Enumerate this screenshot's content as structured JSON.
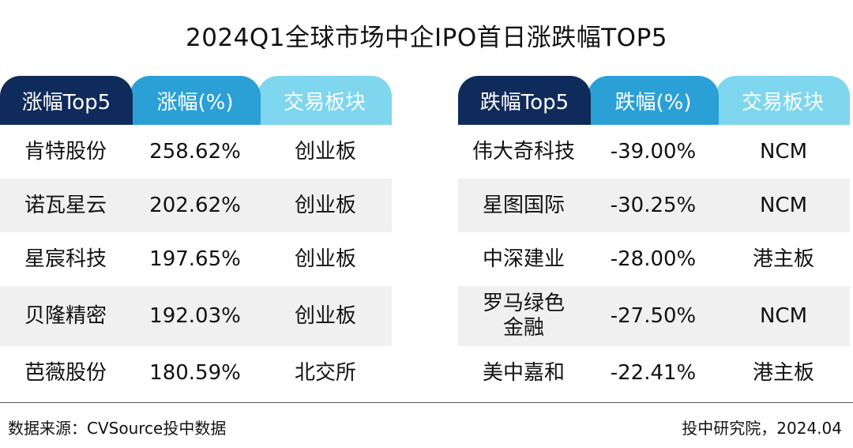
{
  "title": "2024Q1全球市场中企IPO首日涨跌幅TOP5",
  "source": "数据来源：CVSource投中数据",
  "credit": "投中研究院，2024.04",
  "colors": {
    "header_dark": "#0f2b5b",
    "header_mid": "#2aa0d6",
    "header_light": "#7ed6ef",
    "row_shade": "#f0f0f0"
  },
  "chart_data": [
    {
      "type": "table",
      "columns": [
        "涨幅Top5",
        "涨幅(%)",
        "交易板块"
      ],
      "rows": [
        [
          "肯特股份",
          "258.62%",
          "创业板"
        ],
        [
          "诺瓦星云",
          "202.62%",
          "创业板"
        ],
        [
          "星宸科技",
          "197.65%",
          "创业板"
        ],
        [
          "贝隆精密",
          "192.03%",
          "创业板"
        ],
        [
          "芭薇股份",
          "180.59%",
          "北交所"
        ]
      ]
    },
    {
      "type": "table",
      "columns": [
        "跌幅Top5",
        "跌幅(%)",
        "交易板块"
      ],
      "rows": [
        [
          "伟大奇科技",
          "-39.00%",
          "NCM"
        ],
        [
          "星图国际",
          "-30.25%",
          "NCM"
        ],
        [
          "中深建业",
          "-28.00%",
          "港主板"
        ],
        [
          "罗马绿色\n金融",
          "-27.50%",
          "NCM"
        ],
        [
          "美中嘉和",
          "-22.41%",
          "港主板"
        ]
      ]
    }
  ]
}
